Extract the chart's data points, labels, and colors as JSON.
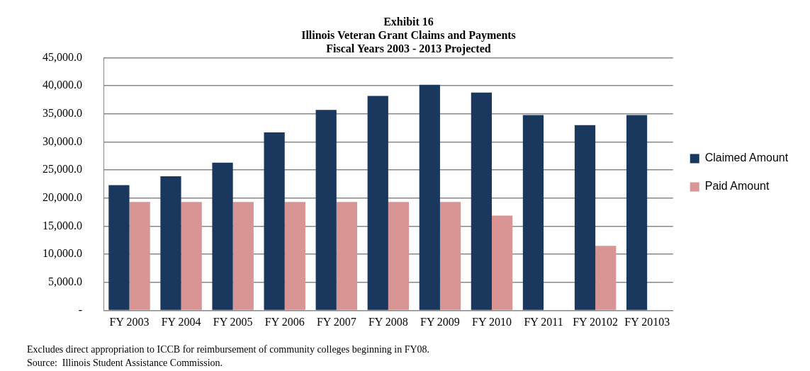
{
  "chart_data": {
    "type": "bar",
    "title": [
      "Exhibit 16",
      "Illinois Veteran Grant Claims and Payments",
      "Fiscal Years 2003 - 2013 Projected"
    ],
    "categories": [
      "FY 2003",
      "FY 2004",
      "FY 2005",
      "FY 2006",
      "FY 2007",
      "FY 2008",
      "FY 2009",
      "FY 2010",
      "FY 2011",
      "FY 20102",
      "FY 20103"
    ],
    "series": [
      {
        "name": "Claimed Amount",
        "color": "#1a375e",
        "values": [
          22300,
          23900,
          26300,
          31700,
          35700,
          38200,
          40200,
          38800,
          34800,
          33000,
          34800
        ]
      },
      {
        "name": "Paid Amount",
        "color": "#d99594",
        "values": [
          19300,
          19300,
          19300,
          19300,
          19300,
          19300,
          19300,
          16900,
          null,
          11500,
          null
        ]
      }
    ],
    "ylim": [
      0,
      45000
    ],
    "yticks": [
      {
        "value": 0,
        "label": "-"
      },
      {
        "value": 5000,
        "label": "5,000.0"
      },
      {
        "value": 10000,
        "label": "10,000.0"
      },
      {
        "value": 15000,
        "label": "15,000.0"
      },
      {
        "value": 20000,
        "label": "20,000.0"
      },
      {
        "value": 25000,
        "label": "25,000.0"
      },
      {
        "value": 30000,
        "label": "30,000.0"
      },
      {
        "value": 35000,
        "label": "35,000.0"
      },
      {
        "value": 40000,
        "label": "40,000.0"
      },
      {
        "value": 45000,
        "label": "45,000.0"
      }
    ],
    "grid": "y",
    "legend": "right",
    "annotations": [
      "Excludes direct appropriation to ICCB for reimbursement of community colleges beginning in FY08.",
      "Source:  Illinois Student Assistance Commission."
    ]
  }
}
